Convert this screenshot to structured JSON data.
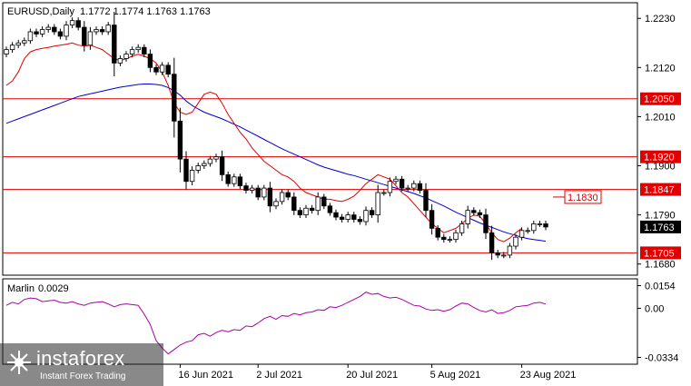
{
  "main_header": {
    "symbol": "EURUSD,Daily",
    "ohlc": "1.1772 1.1774 1.1763 1.1763"
  },
  "indicator_header": {
    "name": "Marlin",
    "value": "0.0029"
  },
  "brand": {
    "name": "instaforex",
    "subtitle": "Instant Forex Trading"
  },
  "colors": {
    "bull": "#ffffff",
    "bear": "#000000",
    "ma_fast": "#e00000",
    "ma_slow": "#0000cc",
    "levels": "#e00000",
    "oscillator": "#aa00aa",
    "current_price_bg": "#000000"
  },
  "chart_data": [
    {
      "type": "candlestick",
      "title": "EURUSD,Daily",
      "ylim": [
        1.1655,
        1.2265
      ],
      "y_ticks": [
        "1.2230",
        "1.2120",
        "1.2010",
        "1.1900",
        "1.1790",
        "1.1680"
      ],
      "x_tick_labels": [
        "16 Jun 2021",
        "2 Jul 2021",
        "20 Jul 2021",
        "5 Aug 2021",
        "23 Aug 2021"
      ],
      "x_tick_candle_index": [
        29,
        42,
        57,
        71,
        86
      ],
      "candle_count": 91,
      "current_price": "1.1763",
      "horizontal_levels": [
        "1.2050",
        "1.1920",
        "1.1847",
        "1.1705"
      ],
      "annotation": "1.1830",
      "close_series": [
        1.216,
        1.217,
        1.2175,
        1.218,
        1.22,
        1.2195,
        1.2205,
        1.221,
        1.22,
        1.219,
        1.2215,
        1.2225,
        1.221,
        1.217,
        1.22,
        1.2205,
        1.22,
        1.2215,
        1.213,
        1.214,
        1.215,
        1.216,
        1.2165,
        1.215,
        1.212,
        1.211,
        1.2125,
        1.2105,
        1.2,
        1.1915,
        1.1865,
        1.189,
        1.19,
        1.1905,
        1.1915,
        1.192,
        1.188,
        1.186,
        1.1875,
        1.1855,
        1.1845,
        1.185,
        1.183,
        1.185,
        1.181,
        1.182,
        1.184,
        1.183,
        1.18,
        1.179,
        1.1805,
        1.18,
        1.183,
        1.181,
        1.1795,
        1.1785,
        1.178,
        1.179,
        1.178,
        1.1775,
        1.18,
        1.179,
        1.184,
        1.184,
        1.1865,
        1.187,
        1.185,
        1.185,
        1.186,
        1.1845,
        1.18,
        1.176,
        1.174,
        1.1735,
        1.1735,
        1.175,
        1.177,
        1.18,
        1.1795,
        1.179,
        1.175,
        1.1705,
        1.17,
        1.17,
        1.172,
        1.174,
        1.1755,
        1.1755,
        1.177,
        1.177,
        1.1763
      ],
      "ma_fast": [
        1.208,
        1.209,
        1.211,
        1.214,
        1.2155,
        1.216,
        1.2163,
        1.2165,
        1.2168,
        1.217,
        1.2172,
        1.2175,
        1.217,
        1.2168,
        1.217,
        1.2165,
        1.216,
        1.215,
        1.214,
        1.2135,
        1.214,
        1.2145,
        1.215,
        1.2145,
        1.214,
        1.213,
        1.211,
        1.208,
        1.204,
        1.202,
        1.2015,
        1.202,
        1.204,
        1.206,
        1.2065,
        1.206,
        1.204,
        1.2015,
        1.1995,
        1.1975,
        1.196,
        1.194,
        1.1925,
        1.191,
        1.19,
        1.189,
        1.188,
        1.1875,
        1.1865,
        1.185,
        1.184,
        1.1835,
        1.183,
        1.1825,
        1.1825,
        1.1822,
        1.182,
        1.1825,
        1.1832,
        1.1845,
        1.186,
        1.187,
        1.188,
        1.1875,
        1.187,
        1.1855,
        1.184,
        1.183,
        1.1815,
        1.18,
        1.1785,
        1.177,
        1.176,
        1.175,
        1.1755,
        1.176,
        1.177,
        1.1782,
        1.179,
        1.1787,
        1.177,
        1.175,
        1.1735,
        1.173,
        1.1738,
        1.175,
        1.176,
        null,
        null,
        null,
        null
      ],
      "ma_slow": [
        1.1995,
        1.2,
        1.2005,
        1.201,
        1.2015,
        1.202,
        1.2025,
        1.203,
        1.2035,
        1.204,
        1.2045,
        1.205,
        1.2055,
        1.2058,
        1.2061,
        1.2064,
        1.2067,
        1.207,
        1.2073,
        1.2076,
        1.2078,
        1.208,
        1.2082,
        1.2083,
        1.2083,
        1.2082,
        1.208,
        1.2075,
        1.2068,
        1.2058,
        1.2045,
        1.2035,
        1.2027,
        1.202,
        1.2015,
        1.201,
        1.2005,
        1.1999,
        1.1993,
        1.1987,
        1.198,
        1.1973,
        1.1966,
        1.1959,
        1.1952,
        1.1945,
        1.1938,
        1.1932,
        1.1926,
        1.192,
        1.1914,
        1.1908,
        1.1902,
        1.1897,
        1.1893,
        1.1889,
        1.1885,
        1.1881,
        1.1878,
        1.1874,
        1.187,
        1.1866,
        1.1862,
        1.1858,
        1.1854,
        1.185,
        1.1846,
        1.1842,
        1.1838,
        1.1833,
        1.1828,
        1.1822,
        1.1816,
        1.181,
        1.1803,
        1.1796,
        1.179,
        1.1784,
        1.1778,
        1.1772,
        1.1767,
        1.1762,
        1.1757,
        1.1752,
        1.1748,
        1.1744,
        1.174,
        1.1737,
        1.1735,
        1.1733,
        1.1731
      ]
    },
    {
      "type": "line",
      "title": "Marlin 0.0029",
      "ylim": [
        -0.038,
        0.02
      ],
      "y_ticks": [
        "0.0154",
        "0.00",
        "-0.0334"
      ],
      "values": [
        0.002,
        0.004,
        0.003,
        0.006,
        0.007,
        0.0065,
        0.0045,
        0.005,
        0.0055,
        0.004,
        0.0035,
        0.0045,
        0.003,
        0.002,
        0.0035,
        0.004,
        0.0045,
        0.003,
        0.001,
        0.0025,
        0.003,
        0.0025,
        0.002,
        -0.004,
        -0.011,
        -0.022,
        -0.027,
        -0.031,
        -0.028,
        -0.025,
        -0.023,
        -0.022,
        -0.018,
        -0.017,
        -0.019,
        -0.0165,
        -0.015,
        -0.016,
        -0.0145,
        -0.015,
        -0.012,
        -0.0125,
        -0.01,
        -0.007,
        -0.0055,
        -0.0075,
        -0.005,
        -0.0055,
        -0.0035,
        -0.0045,
        -0.003,
        -0.0025,
        -0.001,
        -0.0015,
        0.001,
        0.0005,
        0.002,
        0.004,
        0.006,
        0.008,
        0.011,
        0.0095,
        0.01,
        0.008,
        0.007,
        0.0075,
        0.006,
        0.004,
        0.002,
        0.0015,
        -0.0005,
        -0.0015,
        -0.001,
        -0.002,
        -0.001,
        0.0015,
        0.0035,
        0.003,
        0.0005,
        -0.0015,
        -0.0025,
        -0.001,
        -0.0035,
        -0.003,
        -0.0015,
        0.001,
        0.0015,
        0.002,
        0.0035,
        0.004,
        0.0029
      ]
    }
  ]
}
